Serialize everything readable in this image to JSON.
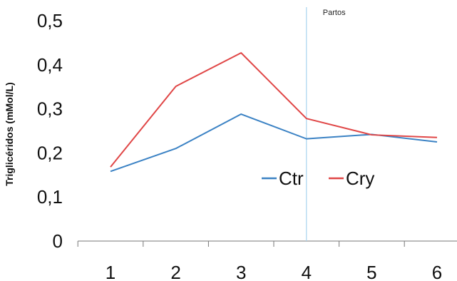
{
  "chart_data": {
    "type": "line",
    "title": "",
    "xlabel": "",
    "ylabel": "Triglicéridos (mMol/L)",
    "categories": [
      "1",
      "2",
      "3",
      "4",
      "5",
      "6"
    ],
    "x": [
      1,
      2,
      3,
      4,
      5,
      6
    ],
    "xlim": [
      0.5,
      6.5
    ],
    "ylim": [
      0,
      0.5
    ],
    "yticks": [
      0,
      0.1,
      0.2,
      0.3,
      0.4,
      0.5
    ],
    "ytick_labels": [
      "0",
      "0,1",
      "0,2",
      "0,3",
      "0,4",
      "0,5"
    ],
    "grid": false,
    "legend_position": "center-right",
    "series": [
      {
        "name": "Ctr",
        "color": "#3b82c4",
        "values": [
          0.158,
          0.21,
          0.288,
          0.232,
          0.242,
          0.225
        ]
      },
      {
        "name": "Cry",
        "color": "#e04646",
        "values": [
          0.168,
          0.351,
          0.427,
          0.278,
          0.241,
          0.235
        ]
      }
    ],
    "annotations": [
      {
        "type": "vline",
        "x": 4,
        "label": "Partos",
        "color": "#a8d4ee"
      }
    ]
  }
}
